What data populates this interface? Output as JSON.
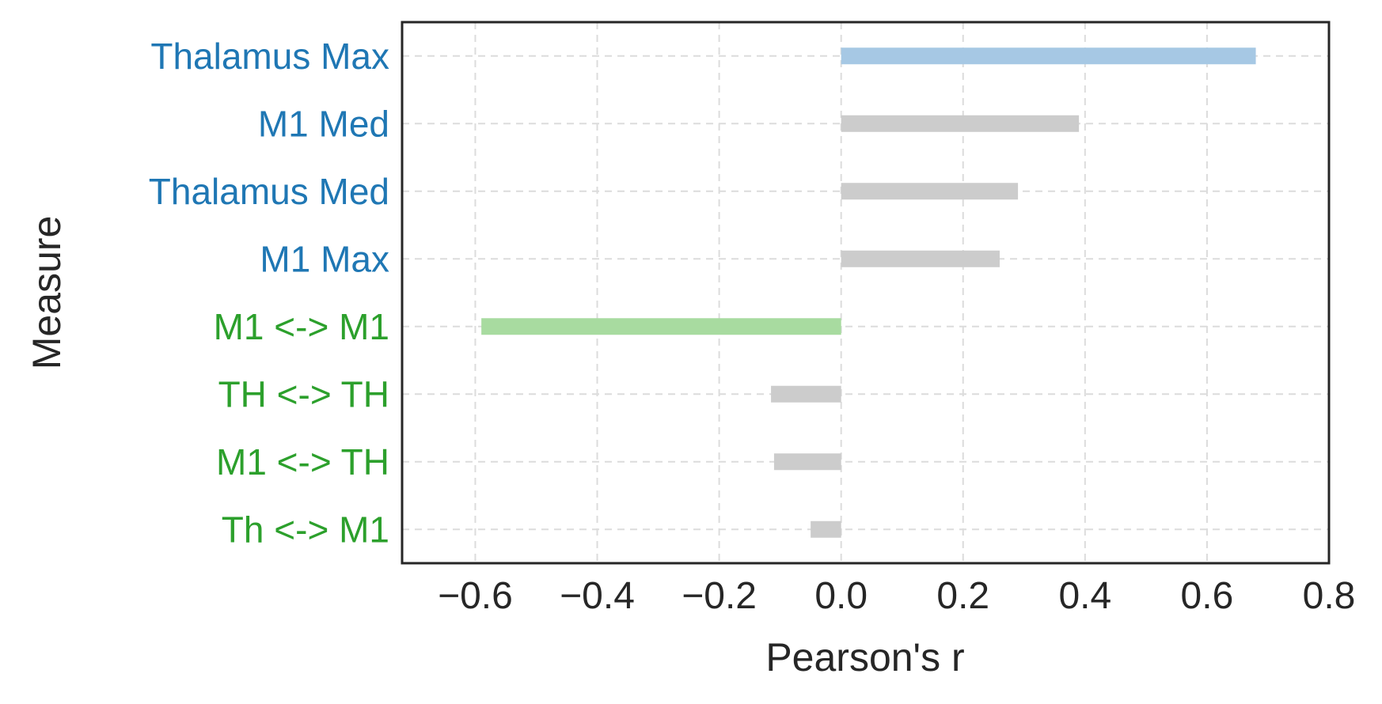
{
  "chart_data": {
    "type": "bar",
    "orientation": "horizontal",
    "categories": [
      "Thalamus Max",
      "M1 Med",
      "Thalamus Med",
      "M1 Max",
      "M1 <-> M1",
      "TH <-> TH",
      "M1 <-> TH",
      "Th <-> M1"
    ],
    "values": [
      0.68,
      0.39,
      0.29,
      0.26,
      -0.59,
      -0.115,
      -0.11,
      -0.05
    ],
    "bar_colors": [
      "#a6c8e4",
      "#cccccc",
      "#cccccc",
      "#cccccc",
      "#a8dba0",
      "#cccccc",
      "#cccccc",
      "#cccccc"
    ],
    "label_colors": [
      "#1f77b4",
      "#1f77b4",
      "#1f77b4",
      "#1f77b4",
      "#2ca02c",
      "#2ca02c",
      "#2ca02c",
      "#2ca02c"
    ],
    "xlabel": "Pearson's r",
    "ylabel": "Measure",
    "xlim": [
      -0.72,
      0.8
    ],
    "xticks": [
      -0.6,
      -0.4,
      -0.2,
      0.0,
      0.2,
      0.4,
      0.6,
      0.8
    ],
    "xtick_labels": [
      "−0.6",
      "−0.4",
      "−0.2",
      "0.0",
      "0.2",
      "0.4",
      "0.6",
      "0.8"
    ],
    "grid": true
  }
}
